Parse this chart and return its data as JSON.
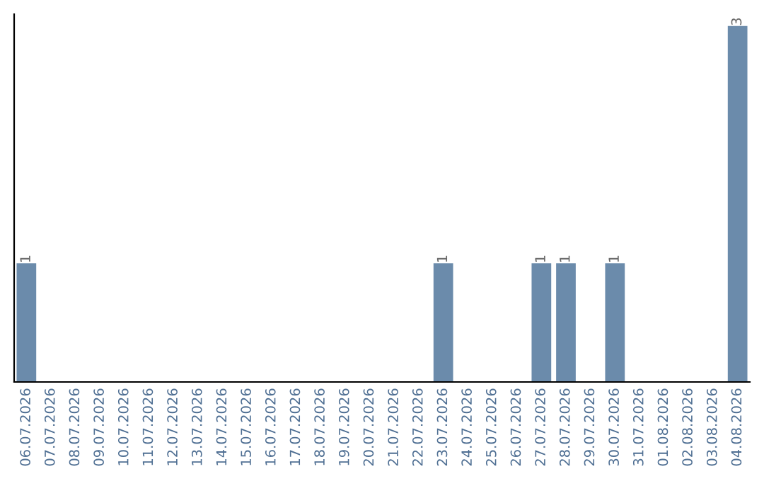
{
  "chart_data": {
    "type": "bar",
    "categories": [
      "06.07.2026",
      "07.07.2026",
      "08.07.2026",
      "09.07.2026",
      "10.07.2026",
      "11.07.2026",
      "12.07.2026",
      "13.07.2026",
      "14.07.2026",
      "15.07.2026",
      "16.07.2026",
      "17.07.2026",
      "18.07.2026",
      "19.07.2026",
      "20.07.2026",
      "21.07.2026",
      "22.07.2026",
      "23.07.2026",
      "24.07.2026",
      "25.07.2026",
      "26.07.2026",
      "27.07.2026",
      "28.07.2026",
      "29.07.2026",
      "30.07.2026",
      "31.07.2026",
      "01.08.2026",
      "02.08.2026",
      "03.08.2026",
      "04.08.2026"
    ],
    "values": [
      1,
      0,
      0,
      0,
      0,
      0,
      0,
      0,
      0,
      0,
      0,
      0,
      0,
      0,
      0,
      0,
      0,
      1,
      0,
      0,
      0,
      1,
      1,
      0,
      1,
      0,
      0,
      0,
      0,
      3
    ],
    "color": "#6b8bab",
    "ylim": [
      0,
      3.1
    ],
    "value_labels": [
      "1",
      null,
      null,
      null,
      null,
      null,
      null,
      null,
      null,
      null,
      null,
      null,
      null,
      null,
      null,
      null,
      null,
      "1",
      null,
      null,
      null,
      "1",
      "1",
      null,
      "1",
      null,
      null,
      null,
      null,
      "3"
    ],
    "tick_labels": "x",
    "grid": false,
    "legend": false
  }
}
